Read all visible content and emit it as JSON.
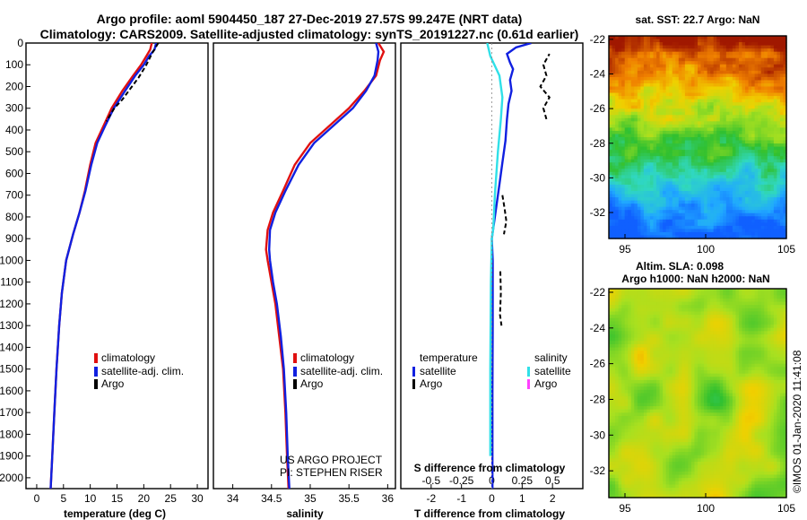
{
  "title_line1": "Argo profile: aoml 5904450_187 27-Dec-2019 27.57S 99.247E (NRT data)",
  "title_line2": "Climatology: CARS2009. Satellite-adjusted climatology: synTS_20191227.nc (0.61d earlier)",
  "colors": {
    "climatology": "#e01010",
    "satellite": "#1020e0",
    "argo": "#000000",
    "sat_salinity": "#30e0e8",
    "argo_salinity": "#ff40ff"
  },
  "depth_axis": {
    "range": [
      0,
      2050
    ],
    "ticks": [
      0,
      100,
      200,
      300,
      400,
      500,
      600,
      700,
      800,
      900,
      1000,
      1100,
      1200,
      1300,
      1400,
      1500,
      1600,
      1700,
      1800,
      1900,
      2000
    ]
  },
  "chart_data": [
    {
      "type": "line",
      "id": "temperature",
      "xlabel": "temperature (deg C)",
      "xlim": [
        -2,
        32
      ],
      "xticks": [
        0,
        5,
        10,
        15,
        20,
        25,
        30
      ],
      "ylim": [
        0,
        2050
      ],
      "series": [
        {
          "name": "climatology",
          "role": "clim",
          "points": [
            [
              21.5,
              0
            ],
            [
              21.2,
              30
            ],
            [
              20.5,
              60
            ],
            [
              19.5,
              100
            ],
            [
              18.0,
              150
            ],
            [
              16.0,
              220
            ],
            [
              14.0,
              300
            ],
            [
              12.5,
              380
            ],
            [
              11.0,
              460
            ],
            [
              10.0,
              560
            ],
            [
              9.0,
              680
            ],
            [
              8.0,
              780
            ],
            [
              6.8,
              880
            ],
            [
              5.5,
              1000
            ],
            [
              4.7,
              1150
            ],
            [
              4.2,
              1300
            ],
            [
              3.7,
              1500
            ],
            [
              3.3,
              1700
            ],
            [
              2.9,
              1900
            ],
            [
              2.6,
              2050
            ]
          ]
        },
        {
          "name": "satellite-adj. clim.",
          "role": "sat",
          "points": [
            [
              22.3,
              0
            ],
            [
              22.0,
              30
            ],
            [
              21.0,
              60
            ],
            [
              20.0,
              100
            ],
            [
              18.4,
              150
            ],
            [
              16.5,
              220
            ],
            [
              14.4,
              300
            ],
            [
              12.8,
              380
            ],
            [
              11.3,
              460
            ],
            [
              10.2,
              560
            ],
            [
              9.1,
              680
            ],
            [
              8.0,
              780
            ],
            [
              6.8,
              880
            ],
            [
              5.5,
              1000
            ],
            [
              4.7,
              1150
            ],
            [
              4.2,
              1300
            ],
            [
              3.7,
              1500
            ],
            [
              3.3,
              1700
            ],
            [
              2.9,
              1900
            ],
            [
              2.6,
              2050
            ]
          ]
        },
        {
          "name": "Argo",
          "role": "argo",
          "points": [
            [
              22.7,
              0
            ],
            [
              21.5,
              50
            ],
            [
              20.5,
              100
            ],
            [
              19.0,
              160
            ],
            [
              17.2,
              220
            ],
            [
              16.0,
              260
            ],
            [
              14.5,
              300
            ],
            [
              13.0,
              360
            ]
          ]
        }
      ],
      "legend": [
        {
          "key": "clim",
          "label": "climatology"
        },
        {
          "key": "sat",
          "label": "satellite-adj. clim."
        },
        {
          "key": "argo",
          "label": "Argo"
        }
      ]
    },
    {
      "type": "line",
      "id": "salinity",
      "xlabel": "salinity",
      "xlim": [
        33.75,
        36.1
      ],
      "xticks": [
        34,
        34.5,
        35,
        35.5,
        36
      ],
      "xticklabels": [
        "34",
        "34.5",
        "35",
        "35.5",
        "36"
      ],
      "ylim": [
        0,
        2050
      ],
      "series": [
        {
          "name": "climatology",
          "role": "clim",
          "points": [
            [
              35.88,
              0
            ],
            [
              35.95,
              40
            ],
            [
              35.9,
              80
            ],
            [
              35.85,
              150
            ],
            [
              35.7,
              220
            ],
            [
              35.5,
              300
            ],
            [
              35.25,
              380
            ],
            [
              35.0,
              460
            ],
            [
              34.8,
              560
            ],
            [
              34.65,
              680
            ],
            [
              34.52,
              780
            ],
            [
              34.45,
              860
            ],
            [
              34.43,
              950
            ],
            [
              34.45,
              1000
            ],
            [
              34.5,
              1100
            ],
            [
              34.55,
              1200
            ],
            [
              34.6,
              1350
            ],
            [
              34.65,
              1500
            ],
            [
              34.68,
              1700
            ],
            [
              34.7,
              1900
            ],
            [
              34.72,
              2050
            ]
          ]
        },
        {
          "name": "satellite-adj. clim.",
          "role": "sat",
          "points": [
            [
              35.85,
              0
            ],
            [
              35.88,
              40
            ],
            [
              35.87,
              80
            ],
            [
              35.83,
              150
            ],
            [
              35.72,
              220
            ],
            [
              35.55,
              300
            ],
            [
              35.3,
              380
            ],
            [
              35.05,
              460
            ],
            [
              34.85,
              560
            ],
            [
              34.68,
              680
            ],
            [
              34.55,
              780
            ],
            [
              34.48,
              860
            ],
            [
              34.47,
              950
            ],
            [
              34.48,
              1000
            ],
            [
              34.52,
              1100
            ],
            [
              34.57,
              1200
            ],
            [
              34.62,
              1350
            ],
            [
              34.66,
              1500
            ],
            [
              34.69,
              1700
            ],
            [
              34.71,
              1900
            ],
            [
              34.73,
              2050
            ]
          ]
        }
      ],
      "legend": [
        {
          "key": "clim",
          "label": "climatology"
        },
        {
          "key": "sat",
          "label": "satellite-adj. clim."
        },
        {
          "key": "argo",
          "label": "Argo"
        }
      ],
      "annotations": [
        "US ARGO PROJECT",
        "PI: STEPHEN RISER"
      ]
    },
    {
      "type": "line",
      "id": "difference",
      "xlabel": "T difference from climatology",
      "xlabel_top": "S difference from climatology",
      "xlim": [
        -3,
        3
      ],
      "xticks": [
        -2,
        -1,
        0,
        1,
        2
      ],
      "xticklabels": [
        "-2",
        "-1",
        "0",
        "1",
        "2"
      ],
      "top_ticks": [
        -0.5,
        -0.25,
        0,
        0.25,
        0.5
      ],
      "top_ticklabels": [
        "-0.5",
        "-0.25",
        "0",
        "0.25",
        "0.5"
      ],
      "top_scale_note": "S value × 4 maps to T axis units",
      "ylim": [
        0,
        2050
      ],
      "series": [
        {
          "name": "temperature satellite",
          "role": "sat",
          "points": [
            [
              1.3,
              0
            ],
            [
              0.8,
              20
            ],
            [
              0.5,
              50
            ],
            [
              0.6,
              90
            ],
            [
              0.7,
              120
            ],
            [
              0.6,
              170
            ],
            [
              0.65,
              220
            ],
            [
              0.55,
              280
            ],
            [
              0.5,
              350
            ],
            [
              0.45,
              450
            ],
            [
              0.35,
              550
            ],
            [
              0.25,
              650
            ],
            [
              0.15,
              750
            ],
            [
              0.05,
              850
            ],
            [
              0.0,
              900
            ],
            [
              0.03,
              1000
            ],
            [
              0.03,
              1300
            ],
            [
              0.02,
              1600
            ],
            [
              0.02,
              2050
            ]
          ]
        },
        {
          "name": "temperature Argo",
          "role": "argo",
          "points": [
            [
              1.8,
              350
            ],
            [
              1.7,
              300
            ],
            [
              1.9,
              250
            ],
            [
              1.6,
              200
            ],
            [
              1.8,
              150
            ],
            [
              1.7,
              100
            ],
            [
              1.9,
              50
            ]
          ]
        },
        {
          "name": "Argo deep segment",
          "role": "argo",
          "points": [
            [
              0.35,
              700
            ],
            [
              0.42,
              760
            ],
            [
              0.48,
              820
            ],
            [
              0.4,
              880
            ]
          ]
        },
        {
          "name": "Argo mid segment",
          "role": "argo",
          "points": [
            [
              0.28,
              1050
            ],
            [
              0.3,
              1150
            ],
            [
              0.27,
              1250
            ],
            [
              0.32,
              1300
            ]
          ]
        },
        {
          "name": "salinity satellite",
          "role": "sat_salinity",
          "points": [
            [
              -0.15,
              0
            ],
            [
              -0.05,
              60
            ],
            [
              0.25,
              150
            ],
            [
              0.35,
              250
            ],
            [
              0.3,
              350
            ],
            [
              0.2,
              500
            ],
            [
              0.1,
              700
            ],
            [
              0.05,
              850
            ],
            [
              0.0,
              900
            ],
            [
              -0.03,
              1100
            ],
            [
              -0.05,
              1500
            ],
            [
              -0.05,
              1900
            ]
          ]
        }
      ],
      "legend_temperature": {
        "title": "temperature",
        "items": [
          {
            "key": "sat",
            "label": "satellite"
          },
          {
            "key": "argo",
            "label": "Argo"
          }
        ]
      },
      "legend_salinity": {
        "title": "salinity",
        "items": [
          {
            "key": "sat_salinity",
            "label": "satellite"
          },
          {
            "key": "argo_salinity",
            "label": "Argo"
          }
        ]
      }
    },
    {
      "type": "heatmap",
      "id": "sst_map",
      "title": "sat. SST: 22.7  Argo: NaN",
      "xlim": [
        94,
        105
      ],
      "ylim": [
        -33.5,
        -21.8
      ],
      "xticks": [
        95,
        100,
        105
      ],
      "yticks": [
        -22,
        -24,
        -26,
        -28,
        -30,
        -32
      ]
    },
    {
      "type": "heatmap",
      "id": "sla_map",
      "title_line1": "Altim. SLA: 0.098",
      "title_line2": "Argo h1000: NaN h2000: NaN",
      "xlim": [
        94,
        105
      ],
      "ylim": [
        -33.5,
        -21.8
      ],
      "xticks": [
        95,
        100,
        105
      ],
      "yticks": [
        -22,
        -24,
        -26,
        -28,
        -30,
        -32
      ],
      "watermark": "©IMOS 01-Jan-2020 11:41:08"
    }
  ]
}
